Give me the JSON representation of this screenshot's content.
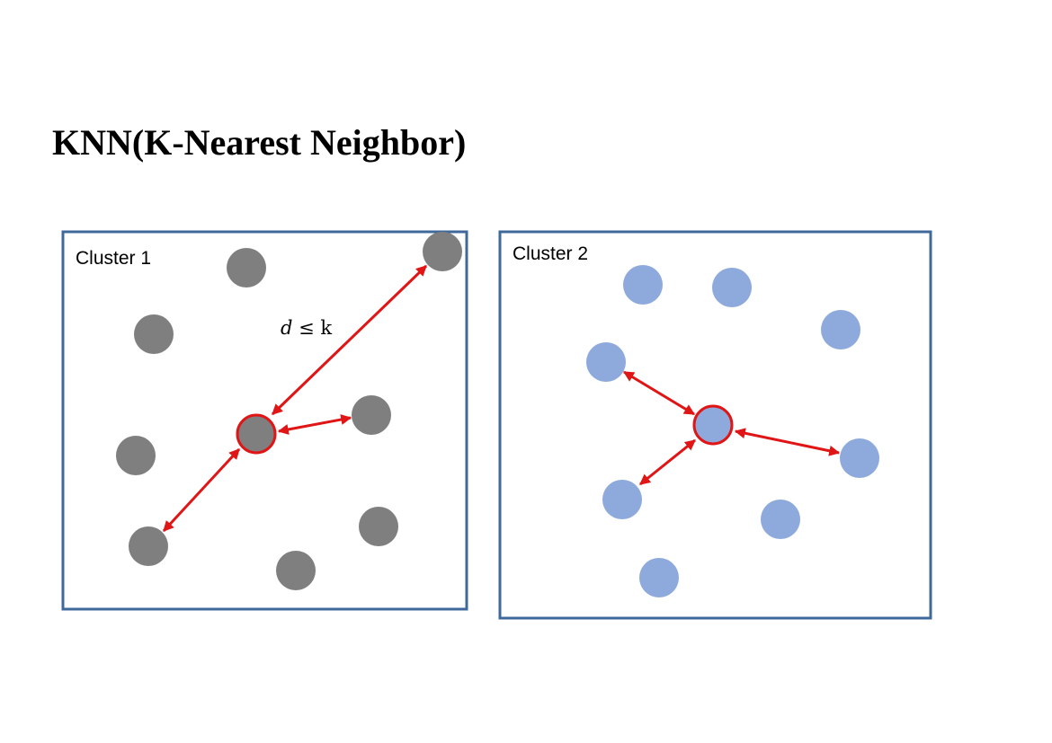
{
  "title": "KNN(K-Nearest Neighbor)",
  "clusters": [
    {
      "label": "Cluster 1",
      "point_color": "#7f7f7f"
    },
    {
      "label": "Cluster 2",
      "point_color": "#8eaadc"
    }
  ],
  "annotation": {
    "formula_var": "d",
    "formula_rest": " ≤ k"
  },
  "colors": {
    "frame": "#40699b",
    "highlight": "#e01515",
    "arrow": "#e01515"
  }
}
